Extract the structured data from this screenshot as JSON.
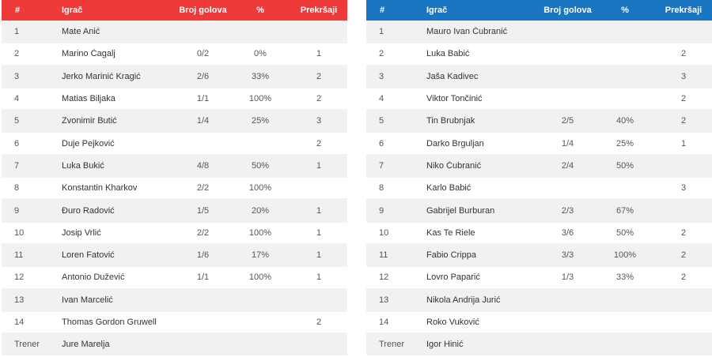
{
  "home": {
    "accent": "#ee3b3a",
    "headers": {
      "num": "#",
      "player": "Igrač",
      "goals": "Broj golova",
      "pct": "%",
      "fouls": "Prekršaji"
    },
    "rows": [
      {
        "num": "1",
        "name": "Mate Anić",
        "goals": "",
        "pct": "",
        "fouls": ""
      },
      {
        "num": "2",
        "name": "Marino Čagalj",
        "goals": "0/2",
        "pct": "0%",
        "fouls": "1"
      },
      {
        "num": "3",
        "name": "Jerko Marinić Kragić",
        "goals": "2/6",
        "pct": "33%",
        "fouls": "2"
      },
      {
        "num": "4",
        "name": "Matias Biljaka",
        "goals": "1/1",
        "pct": "100%",
        "fouls": "2"
      },
      {
        "num": "5",
        "name": "Zvonimir Butić",
        "goals": "1/4",
        "pct": "25%",
        "fouls": "3"
      },
      {
        "num": "6",
        "name": "Duje Pejković",
        "goals": "",
        "pct": "",
        "fouls": "2"
      },
      {
        "num": "7",
        "name": "Luka Bukić",
        "goals": "4/8",
        "pct": "50%",
        "fouls": "1"
      },
      {
        "num": "8",
        "name": "Konstantin Kharkov",
        "goals": "2/2",
        "pct": "100%",
        "fouls": ""
      },
      {
        "num": "9",
        "name": "Đuro Radović",
        "goals": "1/5",
        "pct": "20%",
        "fouls": "1"
      },
      {
        "num": "10",
        "name": "Josip Vrlić",
        "goals": "2/2",
        "pct": "100%",
        "fouls": "1"
      },
      {
        "num": "11",
        "name": "Loren Fatović",
        "goals": "1/6",
        "pct": "17%",
        "fouls": "1"
      },
      {
        "num": "12",
        "name": "Antonio Dužević",
        "goals": "1/1",
        "pct": "100%",
        "fouls": "1"
      },
      {
        "num": "13",
        "name": "Ivan Marcelić",
        "goals": "",
        "pct": "",
        "fouls": ""
      },
      {
        "num": "14",
        "name": "Thomas Gordon Gruwell",
        "goals": "",
        "pct": "",
        "fouls": "2"
      },
      {
        "num": "Trener",
        "name": "Jure Marelja",
        "goals": "",
        "pct": "",
        "fouls": ""
      }
    ]
  },
  "away": {
    "accent": "#1b76c1",
    "headers": {
      "num": "#",
      "player": "Igrač",
      "goals": "Broj golova",
      "pct": "%",
      "fouls": "Prekršaji"
    },
    "rows": [
      {
        "num": "1",
        "name": "Mauro Ivan Čubranić",
        "goals": "",
        "pct": "",
        "fouls": ""
      },
      {
        "num": "2",
        "name": "Luka Babić",
        "goals": "",
        "pct": "",
        "fouls": "2"
      },
      {
        "num": "3",
        "name": "Jaša Kadivec",
        "goals": "",
        "pct": "",
        "fouls": "3"
      },
      {
        "num": "4",
        "name": "Viktor Tončinić",
        "goals": "",
        "pct": "",
        "fouls": "2"
      },
      {
        "num": "5",
        "name": "Tin Brubnjak",
        "goals": "2/5",
        "pct": "40%",
        "fouls": "2"
      },
      {
        "num": "6",
        "name": "Darko Brguljan",
        "goals": "1/4",
        "pct": "25%",
        "fouls": "1"
      },
      {
        "num": "7",
        "name": "Niko Čubranić",
        "goals": "2/4",
        "pct": "50%",
        "fouls": ""
      },
      {
        "num": "8",
        "name": "Karlo Babić",
        "goals": "",
        "pct": "",
        "fouls": "3"
      },
      {
        "num": "9",
        "name": "Gabrijel Burburan",
        "goals": "2/3",
        "pct": "67%",
        "fouls": ""
      },
      {
        "num": "10",
        "name": "Kas Te Riele",
        "goals": "3/6",
        "pct": "50%",
        "fouls": "2"
      },
      {
        "num": "11",
        "name": "Fabio Crippa",
        "goals": "3/3",
        "pct": "100%",
        "fouls": "2"
      },
      {
        "num": "12",
        "name": "Lovro Paparić",
        "goals": "1/3",
        "pct": "33%",
        "fouls": "2"
      },
      {
        "num": "13",
        "name": "Nikola Andrija Jurić",
        "goals": "",
        "pct": "",
        "fouls": ""
      },
      {
        "num": "14",
        "name": "Roko Vuković",
        "goals": "",
        "pct": "",
        "fouls": ""
      },
      {
        "num": "Trener",
        "name": "Igor Hinić",
        "goals": "",
        "pct": "",
        "fouls": ""
      }
    ]
  }
}
